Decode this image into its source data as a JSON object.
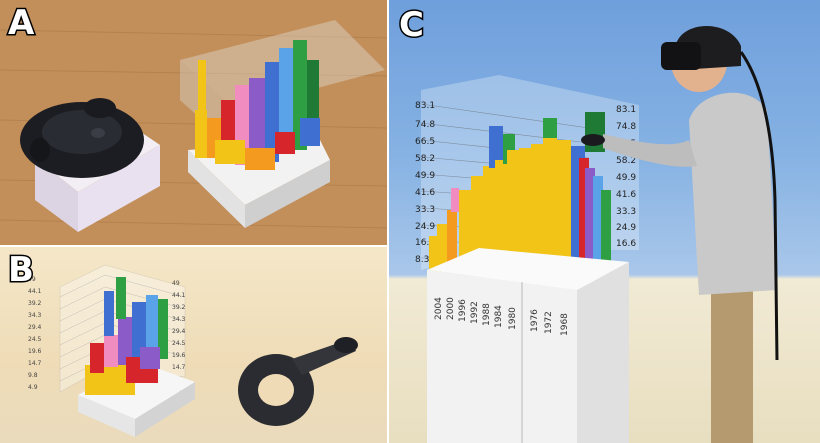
{
  "panels": {
    "a": {
      "label": "A"
    },
    "b": {
      "label": "B",
      "chart_ticks": [
        "49",
        "44.1",
        "39.2",
        "34.3",
        "29.4",
        "24.5",
        "19.6",
        "14.7",
        "9.8",
        "4.9"
      ]
    },
    "c": {
      "label": "C",
      "y_ticks": [
        "83.1",
        "74.8",
        "66.5",
        "58.2",
        "49.9",
        "41.6",
        "33.3",
        "24.9",
        "16.6",
        "8.3"
      ],
      "years": [
        "2004",
        "2000",
        "1996",
        "1992",
        "1988",
        "1984",
        "1980",
        "1976",
        "1972",
        "1968"
      ]
    }
  },
  "colors": {
    "yellow": "#f2c418",
    "orange": "#f39a1f",
    "red": "#d7262b",
    "pink": "#f08cbf",
    "purple": "#8b5cc8",
    "blue": "#3f6fd1",
    "light_blue": "#5aa3e8",
    "green": "#2ea043",
    "dark_green": "#1f7a36"
  }
}
